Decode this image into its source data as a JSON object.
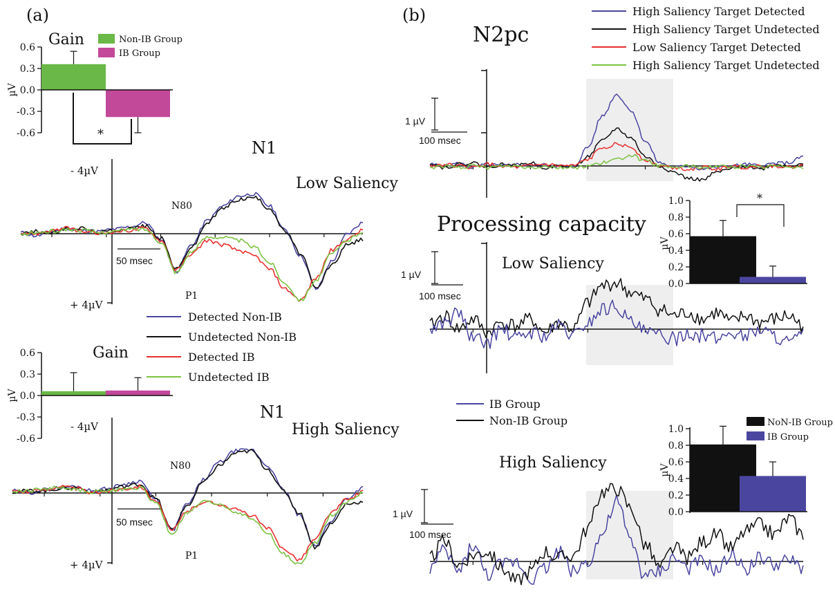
{
  "panels": {
    "a": {
      "label": "(a)"
    },
    "b": {
      "label": "(b)"
    }
  },
  "colors": {
    "blue": "#4a46a0",
    "black": "#111111",
    "red": "#e8302f",
    "green": "#7cc242",
    "bar_green": "#6ab847",
    "bar_magenta": "#c2489a",
    "bar_black": "#111111",
    "bar_blue": "#4a46a0",
    "shade": "#eeeeee"
  },
  "chart_data": [
    {
      "id": "gain-low",
      "type": "bar",
      "title": "Gain",
      "ylabel": "µV",
      "ylim": [
        -0.6,
        0.6
      ],
      "yticks": [
        "0.6",
        "0.3",
        "0.0",
        "-0.3",
        "-0.6"
      ],
      "yticks_values": [
        0.6,
        0.3,
        0.0,
        -0.3,
        -0.6
      ],
      "categories": [
        "Non-IB Group",
        "IB Group"
      ],
      "values": [
        0.36,
        -0.38
      ],
      "errors": [
        0.18,
        0.22
      ],
      "legend": [
        "Non-IB Group",
        "IB Group"
      ],
      "significance": "*"
    },
    {
      "id": "n1-low",
      "type": "line",
      "title": "N1",
      "subtitle": "Low Saliency",
      "peak_labels": [
        "N80",
        "P1"
      ],
      "y_top_label": "- 4µV",
      "y_bottom_label": "+ 4µV",
      "scale_bar": "50 msec",
      "x_ms": [
        -100,
        -80,
        -60,
        -40,
        -20,
        0,
        20,
        40,
        60,
        80,
        100,
        120,
        140,
        160,
        180,
        200,
        220,
        240,
        260,
        280,
        300,
        320,
        340
      ],
      "series": [
        {
          "name": "Detected Non-IB",
          "values": [
            0.1,
            -0.2,
            0.2,
            0.5,
            0.3,
            0.2,
            0.4,
            0.6,
            1.0,
            -0.5,
            -3.4,
            -1.0,
            1.2,
            2.5,
            3.4,
            3.6,
            2.5,
            0.3,
            -2.0,
            -5.0,
            -2.5,
            0,
            1.0
          ]
        },
        {
          "name": "Undetected Non-IB",
          "values": [
            0.0,
            0.2,
            0.1,
            0.4,
            0.5,
            0.1,
            0.3,
            0.5,
            0.7,
            -0.4,
            -3.2,
            -1.2,
            1.0,
            2.3,
            3.1,
            3.3,
            2.3,
            0.2,
            -1.8,
            -5.0,
            -2.8,
            -1.0,
            -0.5
          ]
        },
        {
          "name": "Detected IB",
          "values": [
            0.1,
            0.0,
            0.3,
            0.5,
            0.2,
            0.0,
            0.2,
            0.3,
            0.5,
            -0.6,
            -3.3,
            -1.8,
            -0.6,
            -1.0,
            -1.5,
            -2.0,
            -3.2,
            -5.0,
            -6.0,
            -4.0,
            -1.5,
            -0.5,
            0.3
          ]
        },
        {
          "name": "Undetected IB",
          "values": [
            -0.1,
            0.1,
            0.2,
            0.4,
            0.3,
            0.1,
            0.2,
            0.4,
            0.4,
            -0.7,
            -3.5,
            -1.6,
            -0.3,
            -0.3,
            -0.6,
            -1.2,
            -2.6,
            -4.5,
            -6.0,
            -4.2,
            -1.8,
            -0.6,
            0.2
          ]
        }
      ]
    },
    {
      "id": "gain-high",
      "type": "bar",
      "title": "Gain",
      "ylabel": "µV",
      "ylim": [
        -0.6,
        0.6
      ],
      "yticks": [
        "0.6",
        "0.3",
        "0.0",
        "-0.3",
        "-0.6"
      ],
      "yticks_values": [
        0.6,
        0.3,
        0.0,
        -0.3,
        -0.6
      ],
      "categories": [
        "Non-IB Group",
        "IB Group"
      ],
      "values": [
        0.06,
        0.07
      ],
      "errors": [
        0.26,
        0.18
      ]
    },
    {
      "id": "n1-high",
      "type": "line",
      "title": "N1",
      "subtitle": "High Saliency",
      "peak_labels": [
        "N80",
        "P1"
      ],
      "y_top_label": "- 4µV",
      "y_bottom_label": "+ 4µV",
      "scale_bar": "50 msec",
      "x_ms": [
        -100,
        -80,
        -60,
        -40,
        -20,
        0,
        20,
        40,
        60,
        80,
        100,
        120,
        140,
        160,
        180,
        200,
        220,
        240,
        260,
        280,
        300,
        320,
        340
      ],
      "series": [
        {
          "name": "Detected Non-IB",
          "values": [
            0.2,
            0.0,
            0.3,
            0.5,
            0.6,
            0.2,
            0.4,
            0.8,
            1.1,
            -0.6,
            -3.4,
            -1.0,
            1.2,
            2.8,
            3.8,
            3.9,
            2.5,
            0.3,
            -2.0,
            -4.8,
            -2.5,
            -0.5,
            0.5
          ]
        },
        {
          "name": "Undetected Non-IB",
          "values": [
            0.1,
            0.2,
            0.2,
            0.4,
            0.5,
            0.1,
            0.3,
            0.6,
            0.8,
            -0.5,
            -3.3,
            -1.1,
            1.0,
            2.5,
            3.6,
            3.8,
            2.2,
            0.2,
            -1.8,
            -4.9,
            -2.8,
            -1.0,
            -0.8
          ]
        },
        {
          "name": "Detected IB",
          "values": [
            0.2,
            0.1,
            0.3,
            0.6,
            0.4,
            0.0,
            0.2,
            0.4,
            0.6,
            -0.7,
            -3.4,
            -1.6,
            -0.8,
            -1.0,
            -1.5,
            -2.0,
            -3.2,
            -5.0,
            -6.0,
            -4.2,
            -1.8,
            -0.6,
            0.1
          ]
        },
        {
          "name": "Undetected IB",
          "values": [
            0.1,
            0.2,
            0.4,
            0.5,
            0.3,
            0.1,
            0.2,
            0.3,
            0.5,
            -0.9,
            -3.7,
            -1.8,
            -0.8,
            -1.0,
            -1.7,
            -2.3,
            -3.6,
            -5.5,
            -6.5,
            -4.5,
            -2.0,
            -0.8,
            0.0
          ]
        }
      ]
    },
    {
      "id": "n2pc",
      "type": "line",
      "title": "N2pc",
      "scale_y": "1 µV",
      "scale_x": "100 msec",
      "x_ms": [
        -100,
        -75,
        -50,
        -25,
        0,
        25,
        50,
        75,
        100,
        125,
        150,
        175,
        200,
        225,
        250,
        275,
        300,
        325,
        350,
        375,
        400,
        425,
        450,
        475,
        500,
        525,
        550
      ],
      "series": [
        {
          "name": "High Saliency Target Detected",
          "values": [
            0.05,
            0.0,
            0.08,
            -0.05,
            0.05,
            0.0,
            0.05,
            0.02,
            0.03,
            0.0,
            -0.05,
            0.6,
            1.6,
            2.3,
            1.8,
            0.8,
            0.1,
            -0.05,
            0.0,
            -0.1,
            -0.05,
            0.0,
            0.05,
            0.0,
            0.08,
            0.1,
            0.3
          ]
        },
        {
          "name": "High Saliency Target Undetected",
          "values": [
            0.1,
            -0.05,
            0.05,
            0.1,
            -0.05,
            0.05,
            0.0,
            0.1,
            -0.05,
            0.0,
            -0.05,
            0.3,
            0.8,
            1.2,
            0.9,
            0.3,
            0.0,
            -0.2,
            -0.4,
            -0.45,
            -0.2,
            -0.1,
            0.0,
            -0.1,
            0.05,
            0.0,
            0.1
          ]
        },
        {
          "name": "Low Saliency Target Detected",
          "values": [
            0.0,
            0.05,
            0.0,
            -0.05,
            0.05,
            0.0,
            -0.05,
            0.0,
            0.05,
            0.0,
            0.0,
            0.2,
            0.6,
            0.7,
            0.6,
            0.2,
            0.0,
            -0.05,
            -0.1,
            -0.05,
            -0.1,
            0.0,
            -0.05,
            0.0,
            0.0,
            -0.05,
            0.0
          ]
        },
        {
          "name": "High Saliency Target Undetected",
          "values": [
            -0.05,
            0.0,
            -0.05,
            0.0,
            -0.05,
            0.0,
            0.0,
            -0.05,
            0.0,
            -0.05,
            -0.05,
            0.0,
            0.1,
            0.2,
            0.35,
            0.15,
            0.0,
            -0.05,
            0.0,
            -0.05,
            0.0,
            -0.05,
            0.0,
            -0.05,
            0.0,
            0.0,
            -0.05
          ]
        }
      ]
    },
    {
      "id": "pc-low",
      "type": "line",
      "title": "Processing capacity",
      "subtitle": "Low Saliency",
      "scale_y": "1 µV",
      "scale_x": "100 msec",
      "x_ms": [
        -100,
        -75,
        -50,
        -25,
        0,
        25,
        50,
        75,
        100,
        125,
        150,
        175,
        200,
        225,
        250,
        275,
        300,
        325,
        350,
        375,
        400,
        425,
        450,
        475,
        500,
        525,
        550
      ],
      "series": [
        {
          "name": "Non-IB Group",
          "values": [
            0.1,
            0.4,
            0.0,
            0.3,
            -0.1,
            0.2,
            0.1,
            0.3,
            -0.1,
            0.2,
            0.0,
            0.8,
            1.3,
            1.4,
            1.1,
            0.9,
            0.6,
            0.4,
            0.5,
            0.3,
            0.5,
            0.2,
            0.4,
            0.2,
            0.3,
            0.4,
            0.1
          ]
        },
        {
          "name": "IB Group",
          "values": [
            0.0,
            0.2,
            0.5,
            -0.3,
            -0.4,
            0.0,
            -0.3,
            -0.1,
            -0.2,
            0.1,
            -0.2,
            0.2,
            0.6,
            0.7,
            0.2,
            -0.1,
            -0.2,
            -0.3,
            -0.1,
            -0.2,
            -0.3,
            -0.1,
            -0.2,
            0.0,
            -0.2,
            -0.4,
            -0.2
          ]
        }
      ]
    },
    {
      "id": "pc-low-bars",
      "type": "bar",
      "ylabel": "µV",
      "ylim": [
        0,
        1.0
      ],
      "yticks": [
        "1.0",
        "0.8",
        "0.6",
        "0.4",
        "0.2",
        "0.0"
      ],
      "yticks_values": [
        1.0,
        0.8,
        0.6,
        0.4,
        0.2,
        0.0
      ],
      "categories": [
        "NoN-IB Group",
        "IB Group"
      ],
      "values": [
        0.57,
        0.08
      ],
      "errors": [
        0.19,
        0.13
      ],
      "significance": "*"
    },
    {
      "id": "pc-high",
      "type": "line",
      "subtitle": "High Saliency",
      "scale_y": "1 µV",
      "scale_x": "100 msec",
      "legend": [
        "IB Group",
        "Non-IB Group"
      ],
      "x_ms": [
        -100,
        -75,
        -50,
        -25,
        0,
        25,
        50,
        75,
        100,
        125,
        150,
        175,
        200,
        225,
        250,
        275,
        300,
        325,
        350,
        375,
        400,
        425,
        450,
        475,
        500,
        525,
        550
      ],
      "series": [
        {
          "name": "IB Group",
          "values": [
            -0.2,
            0.3,
            -0.3,
            0.5,
            -0.4,
            -0.1,
            0.0,
            -0.5,
            -0.2,
            0.3,
            -0.3,
            0.0,
            0.8,
            1.8,
            0.6,
            -0.5,
            -0.3,
            0.1,
            -0.2,
            0.0,
            -0.3,
            0.2,
            -0.2,
            0.1,
            -0.1,
            0.0,
            -0.2
          ]
        },
        {
          "name": "Non-IB Group",
          "values": [
            0.1,
            0.6,
            -0.1,
            0.2,
            0.3,
            -0.2,
            -0.6,
            -0.3,
            0.3,
            0.1,
            0.2,
            1.0,
            2.1,
            2.2,
            1.6,
            0.5,
            -0.2,
            0.4,
            0.1,
            0.6,
            0.8,
            0.4,
            0.9,
            1.1,
            0.8,
            1.3,
            0.8
          ]
        }
      ]
    },
    {
      "id": "pc-high-bars",
      "type": "bar",
      "ylabel": "µV",
      "ylim": [
        0,
        1.0
      ],
      "yticks": [
        "1.0",
        "0.8",
        "0.6",
        "0.4",
        "0.2",
        "0.0"
      ],
      "yticks_values": [
        1.0,
        0.8,
        0.6,
        0.4,
        0.2,
        0.0
      ],
      "categories": [
        "NoN-IB Group",
        "IB Group"
      ],
      "values": [
        0.81,
        0.43
      ],
      "errors": [
        0.22,
        0.17
      ],
      "legend": [
        "NoN-IB Group",
        "IB Group"
      ]
    }
  ]
}
